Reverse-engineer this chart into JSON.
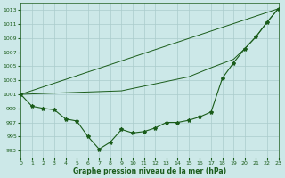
{
  "bg_color": "#cce8e8",
  "grid_color": "#aacccc",
  "line_color": "#1a5c1a",
  "title": "Graphe pression niveau de la mer (hPa)",
  "ylim": [
    992,
    1014
  ],
  "xlim": [
    0,
    23
  ],
  "yticks": [
    993,
    995,
    997,
    999,
    1001,
    1003,
    1005,
    1007,
    1009,
    1011,
    1013
  ],
  "xticks": [
    0,
    1,
    2,
    3,
    4,
    5,
    6,
    7,
    8,
    9,
    10,
    11,
    12,
    13,
    14,
    15,
    16,
    17,
    18,
    19,
    20,
    21,
    22,
    23
  ],
  "series1_x": [
    0,
    1,
    2,
    3,
    4,
    5,
    6,
    7,
    8,
    9,
    10,
    11,
    12,
    13,
    14,
    15,
    16,
    17,
    18,
    19,
    20,
    21,
    22,
    23
  ],
  "series1_y": [
    1001.0,
    999.3,
    999.0,
    998.8,
    997.5,
    997.2,
    995.0,
    993.2,
    994.2,
    996.0,
    995.5,
    995.7,
    996.2,
    997.0,
    997.0,
    997.3,
    997.8,
    998.5,
    1003.3,
    1005.5,
    1007.5,
    1009.2,
    1011.3,
    1013.2
  ],
  "series2_x": [
    0,
    23
  ],
  "series2_y": [
    1001.0,
    1013.2
  ],
  "series3_x": [
    0,
    9,
    12,
    15,
    17,
    19,
    20,
    21,
    22,
    23
  ],
  "series3_y": [
    1001.0,
    1001.5,
    1002.5,
    1003.5,
    1004.8,
    1006.0,
    1007.5,
    1009.2,
    1011.3,
    1013.2
  ]
}
